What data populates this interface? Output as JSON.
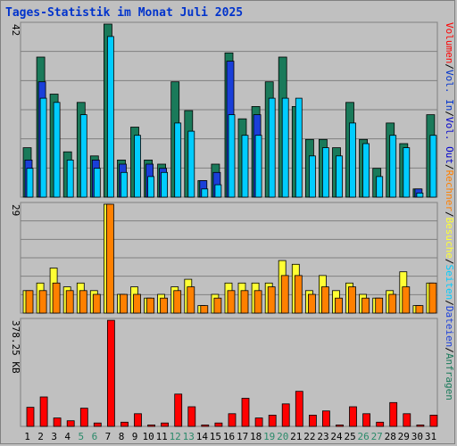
{
  "title": "Tages-Statistik im Monat Juli 2025",
  "chart_data": [
    {
      "type": "bar",
      "panel": "top",
      "ymax_label": "42",
      "ylim": [
        0,
        42
      ],
      "categories": [
        "1",
        "2",
        "3",
        "4",
        "5",
        "6",
        "7",
        "8",
        "9",
        "10",
        "11",
        "12",
        "13",
        "14",
        "15",
        "16",
        "17",
        "18",
        "19",
        "20",
        "21",
        "22",
        "23",
        "24",
        "25",
        "26",
        "27",
        "28",
        "29",
        "30",
        "31"
      ],
      "series": [
        {
          "name": "Anfragen",
          "color": "#1a7a5a",
          "values": [
            12,
            34,
            25,
            11,
            23,
            10,
            42,
            9,
            17,
            9,
            8,
            28,
            21,
            4,
            8,
            35,
            19,
            22,
            28,
            34,
            22,
            14,
            14,
            12,
            23,
            14,
            7,
            18,
            13,
            2,
            20
          ]
        },
        {
          "name": "Dateien",
          "color": "#1a3fd9",
          "values": [
            9,
            28,
            0,
            0,
            0,
            9,
            0,
            8,
            0,
            8,
            7,
            0,
            0,
            4,
            6,
            33,
            0,
            20,
            0,
            0,
            0,
            0,
            0,
            0,
            0,
            0,
            0,
            0,
            0,
            2,
            0
          ]
        },
        {
          "name": "Seiten",
          "color": "#00ccff",
          "values": [
            7,
            24,
            23,
            9,
            20,
            7,
            39,
            6,
            15,
            5,
            6,
            18,
            16,
            2,
            3,
            20,
            15,
            15,
            24,
            24,
            24,
            10,
            12,
            10,
            18,
            13,
            5,
            15,
            12,
            1,
            15
          ]
        }
      ]
    },
    {
      "type": "bar",
      "panel": "middle",
      "ymax_label": "29",
      "ylim": [
        0,
        29
      ],
      "categories": [
        "1",
        "2",
        "3",
        "4",
        "5",
        "6",
        "7",
        "8",
        "9",
        "10",
        "11",
        "12",
        "13",
        "14",
        "15",
        "16",
        "17",
        "18",
        "19",
        "20",
        "21",
        "22",
        "23",
        "24",
        "25",
        "26",
        "27",
        "28",
        "29",
        "30",
        "31"
      ],
      "series": [
        {
          "name": "Besuche",
          "color": "#ffff33",
          "values": [
            6,
            8,
            12,
            7,
            8,
            6,
            29,
            5,
            7,
            4,
            5,
            7,
            9,
            2,
            5,
            8,
            8,
            8,
            8,
            14,
            13,
            6,
            10,
            6,
            8,
            5,
            4,
            6,
            11,
            2,
            8
          ]
        },
        {
          "name": "Rechner",
          "color": "#ff8000",
          "values": [
            6,
            6,
            8,
            6,
            6,
            5,
            29,
            5,
            5,
            4,
            4,
            6,
            7,
            2,
            4,
            6,
            6,
            6,
            7,
            10,
            10,
            5,
            7,
            4,
            7,
            4,
            4,
            5,
            7,
            2,
            8
          ]
        }
      ]
    },
    {
      "type": "bar",
      "panel": "bottom",
      "ymax_label": "378.25 KB",
      "ylim": [
        0,
        378.25
      ],
      "categories": [
        "1",
        "2",
        "3",
        "4",
        "5",
        "6",
        "7",
        "8",
        "9",
        "10",
        "11",
        "12",
        "13",
        "14",
        "15",
        "16",
        "17",
        "18",
        "19",
        "20",
        "21",
        "22",
        "23",
        "24",
        "25",
        "26",
        "27",
        "28",
        "29",
        "30",
        "31"
      ],
      "series": [
        {
          "name": "Vol. Out",
          "color": "#0000cc",
          "values": [
            0,
            0,
            0,
            0,
            0,
            0,
            0,
            0,
            0,
            0,
            0,
            0,
            0,
            0,
            0,
            0,
            0,
            0,
            0,
            0,
            0,
            0,
            0,
            0,
            0,
            0,
            0,
            0,
            0,
            0,
            0
          ]
        },
        {
          "name": "Vol. In",
          "color": "#0033cc",
          "values": [
            0,
            0,
            0,
            0,
            0,
            0,
            0,
            0,
            0,
            0,
            0,
            0,
            0,
            0,
            0,
            0,
            0,
            0,
            0,
            0,
            0,
            0,
            0,
            0,
            0,
            0,
            0,
            0,
            0,
            0,
            0
          ]
        },
        {
          "name": "Volumen",
          "color": "#ff0000",
          "values": [
            68,
            105,
            30,
            20,
            65,
            12,
            378,
            15,
            45,
            5,
            12,
            115,
            70,
            5,
            12,
            45,
            100,
            30,
            40,
            80,
            125,
            40,
            55,
            5,
            70,
            45,
            15,
            85,
            45,
            5,
            40
          ]
        }
      ]
    }
  ],
  "weekend_days": [
    "5",
    "6",
    "12",
    "13",
    "19",
    "20",
    "26",
    "27"
  ],
  "colors": {
    "weekday_label": "#000000",
    "weekend_label": "#2a8a6a",
    "title": "#0033cc",
    "legend_anfragen": "#1a7a5a",
    "legend_dateien": "#1a3fd9",
    "legend_seiten": "#00ccff",
    "legend_besuche": "#ffff33",
    "legend_rechner": "#ff8000",
    "legend_volout": "#0000cc",
    "legend_volin": "#0033cc",
    "legend_volumen": "#ff0000"
  },
  "legend": {
    "top": [
      "Anfragen",
      "/",
      "Dateien",
      "/",
      "Seiten",
      "/",
      "Besuche",
      "/",
      "Rechner",
      "/",
      "Vol. Out",
      "/",
      "Vol. In",
      "/",
      "Volumen"
    ]
  }
}
